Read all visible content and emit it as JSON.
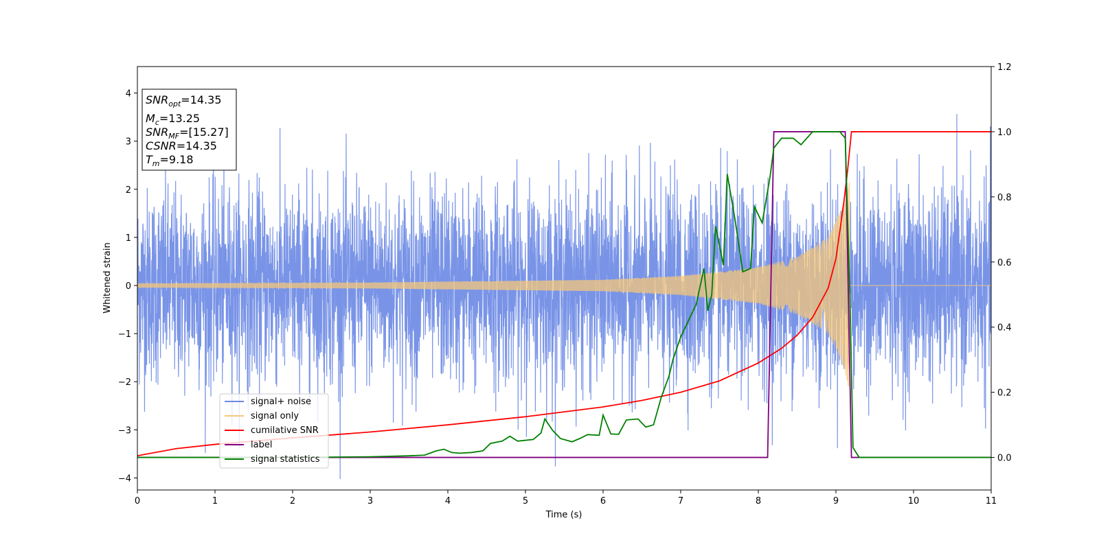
{
  "chart_data": {
    "type": "line",
    "xlabel": "Time (s)",
    "ylabel": "Whitened strain",
    "xlim": [
      0,
      11
    ],
    "ylim": [
      -4.25,
      4.55
    ],
    "y2lim": [
      -0.1,
      1.2
    ],
    "x_ticks": [
      "0",
      "1",
      "2",
      "3",
      "4",
      "5",
      "6",
      "7",
      "8",
      "9",
      "10",
      "11"
    ],
    "y_ticks": [
      "−4",
      "−3",
      "−2",
      "−1",
      "0",
      "1",
      "2",
      "3",
      "4"
    ],
    "y2_ticks": [
      "0.0",
      "0.2",
      "0.4",
      "0.6",
      "0.8",
      "1.0",
      "1.2"
    ],
    "grid": false,
    "legend_position": "lower-left",
    "info_box": [
      {
        "label": "SNR",
        "sub": "opt",
        "value": "=14.35"
      },
      {
        "label": "M",
        "sub": "c",
        "value": "=13.25"
      },
      {
        "label": "SNR",
        "sub": "MF",
        "value": "=[15.27]"
      },
      {
        "label": "CSNR",
        "sub": "",
        "value": "=14.35"
      },
      {
        "label": "T",
        "sub": "m",
        "value": "=9.18"
      }
    ],
    "series": [
      {
        "name": "signal+ noise",
        "axis": "left",
        "color": "#6a88e4",
        "style": "noise",
        "typical_amplitude": 1.0,
        "peak_amplitude": 4.2
      },
      {
        "name": "signal only",
        "axis": "left",
        "color": "#f5c77a",
        "style": "chirp",
        "coalescence_time": 9.18,
        "envelope": [
          [
            0,
            0.04
          ],
          [
            3,
            0.06
          ],
          [
            6,
            0.12
          ],
          [
            7,
            0.2
          ],
          [
            8,
            0.38
          ],
          [
            8.5,
            0.6
          ],
          [
            8.9,
            1.0
          ],
          [
            9.1,
            1.7
          ],
          [
            9.18,
            2.3
          ]
        ]
      },
      {
        "name": "cumilative SNR",
        "axis": "right",
        "color": "#ff0000",
        "points": [
          [
            0,
            0.005
          ],
          [
            0.5,
            0.027
          ],
          [
            1,
            0.04
          ],
          [
            2,
            0.06
          ],
          [
            3,
            0.078
          ],
          [
            4,
            0.1
          ],
          [
            5,
            0.125
          ],
          [
            6,
            0.155
          ],
          [
            6.5,
            0.175
          ],
          [
            7,
            0.2
          ],
          [
            7.5,
            0.235
          ],
          [
            8,
            0.29
          ],
          [
            8.3,
            0.335
          ],
          [
            8.5,
            0.375
          ],
          [
            8.7,
            0.43
          ],
          [
            8.9,
            0.52
          ],
          [
            9.0,
            0.61
          ],
          [
            9.1,
            0.78
          ],
          [
            9.15,
            0.88
          ],
          [
            9.2,
            1.0
          ],
          [
            11,
            1.0
          ]
        ]
      },
      {
        "name": "label",
        "axis": "right",
        "color": "#800080",
        "points": [
          [
            0,
            0.0
          ],
          [
            8.12,
            0.0
          ],
          [
            8.2,
            1.0
          ],
          [
            9.12,
            1.0
          ],
          [
            9.2,
            0.0
          ],
          [
            11,
            0.0
          ]
        ]
      },
      {
        "name": "signal statistics",
        "axis": "right",
        "color": "#008000",
        "points": [
          [
            0,
            0.0
          ],
          [
            1,
            0.0
          ],
          [
            2,
            0.0
          ],
          [
            3,
            0.002
          ],
          [
            3.5,
            0.005
          ],
          [
            3.7,
            0.007
          ],
          [
            3.85,
            0.02
          ],
          [
            3.95,
            0.025
          ],
          [
            4.05,
            0.015
          ],
          [
            4.15,
            0.013
          ],
          [
            4.3,
            0.015
          ],
          [
            4.45,
            0.02
          ],
          [
            4.55,
            0.043
          ],
          [
            4.7,
            0.05
          ],
          [
            4.8,
            0.065
          ],
          [
            4.9,
            0.05
          ],
          [
            5.1,
            0.055
          ],
          [
            5.2,
            0.075
          ],
          [
            5.25,
            0.118
          ],
          [
            5.35,
            0.083
          ],
          [
            5.45,
            0.058
          ],
          [
            5.6,
            0.048
          ],
          [
            5.7,
            0.058
          ],
          [
            5.8,
            0.07
          ],
          [
            5.95,
            0.068
          ],
          [
            6.0,
            0.13
          ],
          [
            6.1,
            0.072
          ],
          [
            6.2,
            0.071
          ],
          [
            6.3,
            0.115
          ],
          [
            6.45,
            0.118
          ],
          [
            6.55,
            0.093
          ],
          [
            6.65,
            0.1
          ],
          [
            6.75,
            0.185
          ],
          [
            6.85,
            0.25
          ],
          [
            6.9,
            0.3
          ],
          [
            7.0,
            0.37
          ],
          [
            7.1,
            0.42
          ],
          [
            7.2,
            0.47
          ],
          [
            7.3,
            0.58
          ],
          [
            7.35,
            0.45
          ],
          [
            7.4,
            0.5
          ],
          [
            7.45,
            0.71
          ],
          [
            7.55,
            0.59
          ],
          [
            7.6,
            0.87
          ],
          [
            7.7,
            0.73
          ],
          [
            7.8,
            0.57
          ],
          [
            7.9,
            0.58
          ],
          [
            7.95,
            0.77
          ],
          [
            8.05,
            0.72
          ],
          [
            8.15,
            0.86
          ],
          [
            8.2,
            0.95
          ],
          [
            8.3,
            0.98
          ],
          [
            8.45,
            0.98
          ],
          [
            8.55,
            0.96
          ],
          [
            8.7,
            1.0
          ],
          [
            9.05,
            1.0
          ],
          [
            9.12,
            0.98
          ],
          [
            9.18,
            0.5
          ],
          [
            9.22,
            0.03
          ],
          [
            9.3,
            0.0
          ],
          [
            11,
            0.0
          ]
        ]
      }
    ]
  }
}
